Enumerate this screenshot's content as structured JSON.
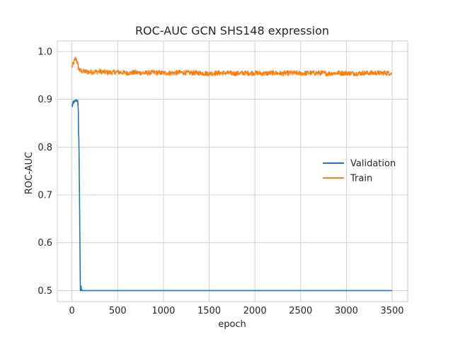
{
  "chart_data": {
    "type": "line",
    "title": "ROC-AUC GCN SHS148 expression",
    "xlabel": "epoch",
    "ylabel": "ROC-AUC",
    "xlim": [
      -160,
      3670
    ],
    "ylim": [
      0.477,
      1.022
    ],
    "x_ticks": [
      0,
      500,
      1000,
      1500,
      2000,
      2500,
      3000,
      3500
    ],
    "y_ticks": [
      0.5,
      0.6,
      0.7,
      0.8,
      0.9,
      1.0
    ],
    "y_tick_labels": [
      "0.5",
      "0.6",
      "0.7",
      "0.8",
      "0.9",
      "1.0"
    ],
    "grid": true,
    "legend_position": "center-right",
    "series": [
      {
        "name": "Validation",
        "color": "#1f77b4",
        "x": [
          0,
          5,
          10,
          15,
          20,
          25,
          30,
          35,
          40,
          45,
          50,
          55,
          60,
          65,
          68,
          70,
          72,
          75,
          78,
          80,
          82,
          85,
          88,
          90,
          92,
          95,
          98,
          100,
          102,
          105,
          110,
          120,
          200,
          500,
          1000,
          1500,
          2000,
          2500,
          3000,
          3500
        ],
        "y": [
          0.89,
          0.885,
          0.893,
          0.896,
          0.892,
          0.897,
          0.895,
          0.898,
          0.896,
          0.899,
          0.897,
          0.895,
          0.898,
          0.893,
          0.88,
          0.875,
          0.83,
          0.82,
          0.78,
          0.74,
          0.7,
          0.64,
          0.58,
          0.53,
          0.5,
          0.508,
          0.5,
          0.509,
          0.5,
          0.503,
          0.5,
          0.5,
          0.5,
          0.5,
          0.5,
          0.5,
          0.5,
          0.5,
          0.5,
          0.5
        ]
      },
      {
        "name": "Train",
        "color": "#ff7f0e",
        "x": [
          0,
          10,
          20,
          30,
          40,
          45,
          50,
          60,
          70,
          80,
          90,
          100,
          150,
          200,
          300,
          400,
          500,
          600,
          700,
          800,
          900,
          1000,
          1100,
          1200,
          1300,
          1400,
          1500,
          1600,
          1700,
          1800,
          1900,
          2000,
          2100,
          2200,
          2300,
          2400,
          2500,
          2600,
          2700,
          2800,
          2900,
          3000,
          3100,
          3200,
          3300,
          3400,
          3500
        ],
        "y": [
          0.968,
          0.972,
          0.977,
          0.982,
          0.985,
          0.984,
          0.983,
          0.975,
          0.966,
          0.962,
          0.96,
          0.959,
          0.958,
          0.957,
          0.958,
          0.956,
          0.957,
          0.955,
          0.956,
          0.955,
          0.956,
          0.955,
          0.955,
          0.956,
          0.955,
          0.955,
          0.954,
          0.955,
          0.955,
          0.954,
          0.955,
          0.955,
          0.954,
          0.955,
          0.954,
          0.955,
          0.954,
          0.955,
          0.955,
          0.954,
          0.955,
          0.955,
          0.954,
          0.955,
          0.955,
          0.955,
          0.955
        ],
        "noise_amplitude": 0.005
      }
    ]
  }
}
